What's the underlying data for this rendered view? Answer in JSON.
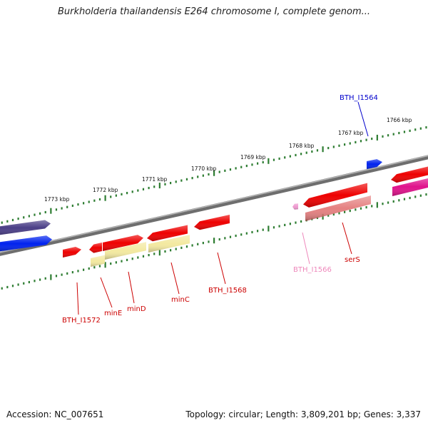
{
  "title": "Burkholderia thailandensis E264 chromosome I, complete genom...",
  "footer": {
    "accession": "Accession: NC_007651",
    "summary": "Topology: circular; Length: 3,809,201 bp; Genes: 3,337"
  },
  "colors": {
    "backbone": "#888888",
    "tick": "#2e7d32",
    "cds": "#ee0000",
    "gene": "#f3e9a0",
    "rna": "#e06b6b",
    "pseudo": "#ef9ad0",
    "navy": "#4b3f87",
    "blue": "#0022ee",
    "magenta": "#e0138c",
    "label_red": "#cc0000",
    "label_blue": "#0000cc",
    "label_pink": "#ee88bb"
  },
  "scale_labels": [
    {
      "text": "1773 kbp"
    },
    {
      "text": "1772 kbp"
    },
    {
      "text": "1771 kbp"
    },
    {
      "text": "1770 kbp"
    },
    {
      "text": "1769 kbp"
    },
    {
      "text": "1768 kbp"
    },
    {
      "text": "1767 kbp"
    },
    {
      "text": "1766 kbp"
    }
  ],
  "gene_labels": [
    {
      "text": "BTH_I1572",
      "color": "label_red"
    },
    {
      "text": "minE",
      "color": "label_red"
    },
    {
      "text": "minD",
      "color": "label_red"
    },
    {
      "text": "minC",
      "color": "label_red"
    },
    {
      "text": "BTH_I1568",
      "color": "label_red"
    },
    {
      "text": "BTH_I1566",
      "color": "label_pink"
    },
    {
      "text": "serS",
      "color": "label_red"
    },
    {
      "text": "BTH_I1564",
      "color": "label_blue"
    }
  ]
}
